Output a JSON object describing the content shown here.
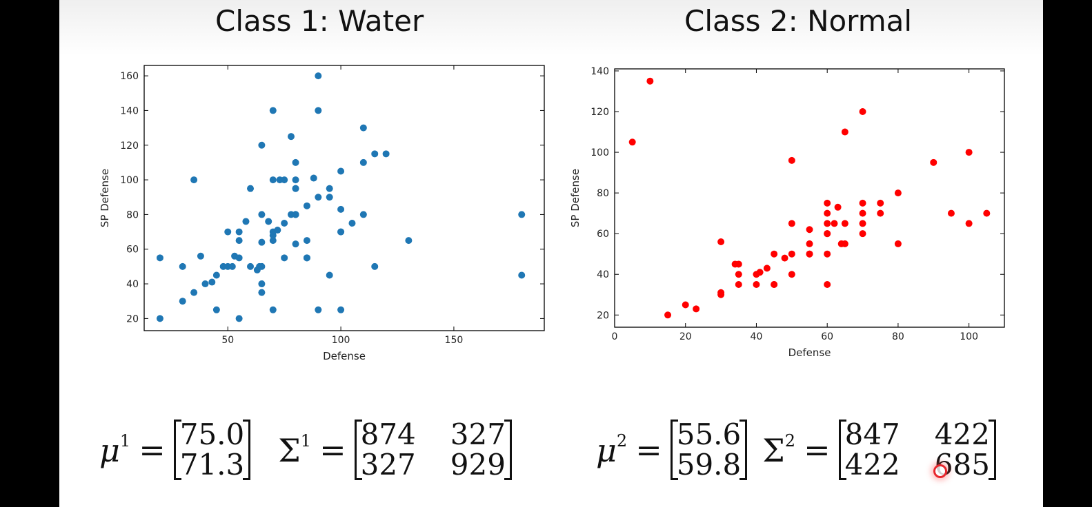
{
  "left": {
    "title": "Class 1: Water",
    "mu_symbol": "μ",
    "mu_sup": "1",
    "mu": [
      "75.0",
      "71.3"
    ],
    "sigma_symbol": "Σ",
    "sigma_sup": "1",
    "sigma": [
      "874",
      "327",
      "327",
      "929"
    ]
  },
  "right": {
    "title": "Class 2: Normal",
    "mu_symbol": "μ",
    "mu_sup": "2",
    "mu": [
      "55.6",
      "59.8"
    ],
    "sigma_symbol": "Σ",
    "sigma_sup": "2",
    "sigma": [
      "847",
      "422",
      "422",
      "685"
    ]
  },
  "equals": "=",
  "chart_data": [
    {
      "type": "scatter",
      "title": "Class 1: Water",
      "xlabel": "Defense",
      "ylabel": "SP Defense",
      "xlim": [
        13,
        190
      ],
      "ylim": [
        13,
        166
      ],
      "xticks": [
        50,
        100,
        150
      ],
      "yticks": [
        20,
        40,
        60,
        80,
        100,
        120,
        140,
        160
      ],
      "grid": false,
      "color": "#1f77b4",
      "x": [
        20,
        20,
        30,
        30,
        35,
        35,
        38,
        40,
        43,
        45,
        45,
        48,
        50,
        50,
        52,
        53,
        55,
        55,
        55,
        55,
        58,
        60,
        60,
        63,
        64,
        65,
        65,
        65,
        65,
        65,
        65,
        68,
        70,
        70,
        70,
        70,
        70,
        70,
        72,
        73,
        75,
        75,
        75,
        78,
        78,
        80,
        80,
        80,
        80,
        80,
        80,
        80,
        80,
        85,
        85,
        85,
        85,
        88,
        90,
        90,
        90,
        90,
        95,
        95,
        95,
        100,
        100,
        100,
        100,
        100,
        105,
        110,
        110,
        110,
        115,
        115,
        120,
        130,
        180,
        180
      ],
      "y": [
        20,
        55,
        30,
        50,
        35,
        100,
        56,
        40,
        41,
        25,
        45,
        50,
        50,
        70,
        50,
        56,
        20,
        55,
        65,
        70,
        76,
        95,
        50,
        48,
        50,
        120,
        80,
        64,
        40,
        35,
        50,
        76,
        140,
        100,
        65,
        70,
        25,
        68,
        71,
        100,
        75,
        55,
        100,
        80,
        125,
        110,
        100,
        95,
        95,
        80,
        80,
        63,
        80,
        85,
        65,
        55,
        55,
        101,
        160,
        140,
        90,
        25,
        95,
        90,
        45,
        105,
        83,
        70,
        25,
        70,
        75,
        130,
        110,
        80,
        115,
        50,
        115,
        65,
        80,
        45
      ]
    },
    {
      "type": "scatter",
      "title": "Class 2: Normal",
      "xlabel": "Defense",
      "ylabel": "SP Defense",
      "xlim": [
        0,
        110
      ],
      "ylim": [
        14,
        141
      ],
      "xticks": [
        0,
        20,
        40,
        60,
        80,
        100
      ],
      "yticks": [
        20,
        40,
        60,
        80,
        100,
        120,
        140
      ],
      "grid": false,
      "color": "#ff0000",
      "x": [
        5,
        10,
        15,
        20,
        23,
        30,
        30,
        30,
        34,
        35,
        35,
        35,
        40,
        40,
        41,
        43,
        45,
        45,
        45,
        48,
        50,
        50,
        50,
        50,
        55,
        55,
        55,
        55,
        60,
        60,
        60,
        60,
        60,
        60,
        60,
        62,
        63,
        64,
        65,
        65,
        65,
        70,
        70,
        70,
        70,
        70,
        75,
        75,
        80,
        80,
        90,
        95,
        100,
        100,
        105
      ],
      "y": [
        105,
        135,
        20,
        25,
        23,
        30,
        31,
        56,
        45,
        45,
        40,
        35,
        35,
        40,
        41,
        43,
        50,
        35,
        35,
        48,
        50,
        65,
        96,
        40,
        62,
        55,
        50,
        50,
        75,
        70,
        65,
        60,
        60,
        50,
        35,
        65,
        73,
        55,
        55,
        65,
        110,
        120,
        75,
        70,
        65,
        60,
        75,
        70,
        80,
        55,
        95,
        70,
        100,
        65,
        70
      ]
    }
  ]
}
